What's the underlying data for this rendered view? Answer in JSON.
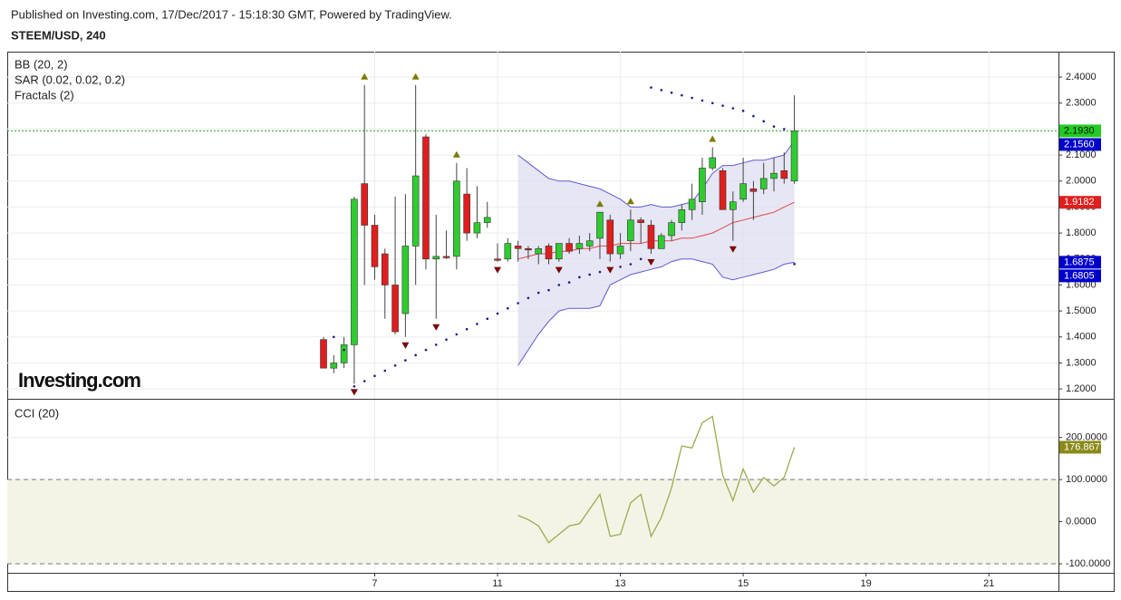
{
  "header": {
    "published": "Published on Investing.com, 17/Dec/2017 - 15:18:30 GMT, Powered by TradingView.",
    "symbol": "STEEM/USD, 240"
  },
  "chart_data": [
    {
      "type": "candlestick",
      "indicators": [
        "BB (20, 2)",
        "SAR (0.02, 0.02, 0.2)",
        "Fractals (2)"
      ],
      "watermark": "Investing.com",
      "x": [
        0,
        1,
        2,
        3,
        4,
        5,
        6,
        7,
        8,
        9,
        10,
        11,
        12,
        13,
        14,
        15,
        16,
        17,
        18,
        19,
        20,
        21,
        22,
        23,
        24,
        25,
        26,
        27,
        28,
        29,
        30,
        31,
        32,
        33,
        34,
        35,
        36,
        37,
        38,
        39,
        40,
        41,
        42,
        43,
        44,
        45,
        46
      ],
      "open": [
        1.39,
        1.28,
        1.3,
        1.37,
        1.99,
        1.83,
        1.72,
        1.6,
        1.49,
        1.75,
        2.17,
        1.7,
        1.71,
        1.71,
        1.95,
        1.8,
        1.84,
        1.7,
        1.7,
        1.75,
        1.74,
        1.72,
        1.75,
        1.7,
        1.76,
        1.74,
        1.75,
        1.78,
        1.85,
        1.72,
        1.77,
        1.85,
        1.83,
        1.74,
        1.79,
        1.84,
        1.89,
        1.92,
        2.05,
        2.04,
        1.89,
        1.93,
        1.97,
        1.97,
        2.01,
        2.04,
        2.0
      ],
      "close": [
        1.28,
        1.3,
        1.37,
        1.93,
        1.83,
        1.67,
        1.6,
        1.42,
        1.75,
        2.02,
        1.7,
        1.71,
        1.71,
        2.0,
        1.8,
        1.84,
        1.86,
        1.7,
        1.76,
        1.74,
        1.74,
        1.74,
        1.7,
        1.76,
        1.73,
        1.76,
        1.77,
        1.88,
        1.72,
        1.75,
        1.85,
        1.84,
        1.74,
        1.79,
        1.84,
        1.89,
        1.93,
        2.05,
        2.09,
        1.89,
        1.92,
        1.99,
        1.96,
        2.01,
        2.03,
        2.01,
        2.193
      ],
      "high": [
        1.4,
        1.33,
        1.4,
        1.94,
        2.37,
        1.87,
        1.74,
        1.94,
        1.95,
        2.37,
        2.18,
        1.87,
        1.81,
        2.07,
        2.05,
        1.98,
        1.92,
        1.76,
        1.78,
        1.77,
        1.75,
        1.75,
        1.76,
        1.76,
        1.78,
        1.79,
        1.8,
        1.88,
        1.87,
        1.8,
        1.89,
        1.86,
        1.85,
        1.8,
        1.85,
        1.91,
        1.99,
        2.09,
        2.13,
        2.05,
        1.96,
        2.09,
        2.0,
        2.07,
        2.09,
        2.11,
        2.33
      ],
      "low": [
        1.28,
        1.26,
        1.28,
        1.22,
        1.6,
        1.62,
        1.47,
        1.41,
        1.4,
        1.6,
        1.66,
        1.47,
        1.7,
        1.66,
        1.77,
        1.78,
        1.82,
        1.69,
        1.69,
        1.69,
        1.7,
        1.68,
        1.68,
        1.69,
        1.72,
        1.72,
        1.73,
        1.7,
        1.69,
        1.7,
        1.73,
        1.76,
        1.72,
        1.74,
        1.77,
        1.81,
        1.85,
        1.87,
        2.04,
        1.89,
        1.77,
        1.92,
        1.85,
        1.95,
        1.96,
        1.99,
        1.99
      ],
      "close_labels": [
        null,
        null,
        null,
        null,
        null,
        null,
        null,
        null,
        null,
        null,
        null,
        null,
        null,
        null,
        null,
        null,
        null,
        null,
        null,
        null,
        null,
        null,
        null,
        null,
        null,
        null,
        null,
        null,
        null,
        null,
        null,
        null,
        null,
        null,
        null,
        null,
        null,
        null,
        null,
        null,
        null,
        null,
        null,
        null,
        null,
        null,
        "2.1930"
      ],
      "up_color": "#2fcc2f",
      "down_color": "#e01e1e",
      "wick_color": "#444444",
      "label_color": "#22cc22",
      "price_line_color": "#22aa22",
      "xlim": [
        -30.9,
        71.8
      ],
      "xticks": [
        {
          "value": 5,
          "label": "7"
        },
        {
          "value": 17,
          "label": "11"
        },
        {
          "value": 29,
          "label": "13"
        },
        {
          "value": 41,
          "label": "15"
        },
        {
          "value": 53,
          "label": "19"
        },
        {
          "value": 65,
          "label": "21"
        }
      ],
      "ylim": [
        1.162,
        2.498
      ],
      "yticks": [
        {
          "value": 1.2,
          "label": "1.2000"
        },
        {
          "value": 1.3,
          "label": "1.3000"
        },
        {
          "value": 1.4,
          "label": "1.4000"
        },
        {
          "value": 1.5,
          "label": "1.5000"
        },
        {
          "value": 1.6,
          "label": "1.6000"
        },
        {
          "value": 1.7,
          "label": "1.7000"
        },
        {
          "value": 1.8,
          "label": "1.8000"
        },
        {
          "value": 1.9,
          "label": "1.9000"
        },
        {
          "value": 2.0,
          "label": "2.0000"
        },
        {
          "value": 2.1,
          "label": "2.1000"
        },
        {
          "value": 2.2,
          "label": "2.2000"
        },
        {
          "value": 2.3,
          "label": "2.3000"
        },
        {
          "value": 2.4,
          "label": "2.4000"
        }
      ],
      "grid": true,
      "bands": {
        "upper": [
          null,
          null,
          null,
          null,
          null,
          null,
          null,
          null,
          null,
          null,
          null,
          null,
          null,
          null,
          null,
          null,
          null,
          null,
          null,
          2.1,
          2.07,
          2.04,
          2.01,
          2.0,
          2.0,
          1.99,
          1.98,
          1.97,
          1.95,
          1.93,
          1.9,
          1.9,
          1.91,
          1.9,
          1.9,
          1.91,
          1.92,
          1.97,
          2.03,
          2.06,
          2.06,
          2.07,
          2.08,
          2.08,
          2.09,
          2.1,
          2.156
        ],
        "middle": [
          null,
          null,
          null,
          null,
          null,
          null,
          null,
          null,
          null,
          null,
          null,
          null,
          null,
          null,
          null,
          null,
          null,
          null,
          null,
          1.7,
          1.71,
          1.72,
          1.72,
          1.73,
          1.73,
          1.74,
          1.74,
          1.75,
          1.75,
          1.76,
          1.76,
          1.76,
          1.77,
          1.77,
          1.77,
          1.78,
          1.78,
          1.79,
          1.8,
          1.82,
          1.84,
          1.85,
          1.86,
          1.87,
          1.88,
          1.9,
          1.9182
        ],
        "lower": [
          null,
          null,
          null,
          null,
          null,
          null,
          null,
          null,
          null,
          null,
          null,
          null,
          null,
          null,
          null,
          null,
          null,
          null,
          null,
          1.29,
          1.35,
          1.41,
          1.46,
          1.5,
          1.51,
          1.51,
          1.51,
          1.52,
          1.6,
          1.62,
          1.64,
          1.65,
          1.66,
          1.67,
          1.69,
          1.7,
          1.7,
          1.69,
          1.68,
          1.63,
          1.62,
          1.63,
          1.64,
          1.65,
          1.66,
          1.68,
          1.6875
        ],
        "upper_labels": [
          null,
          null,
          null,
          null,
          null,
          null,
          null,
          null,
          null,
          null,
          null,
          null,
          null,
          null,
          null,
          null,
          null,
          null,
          null,
          null,
          null,
          null,
          null,
          null,
          null,
          null,
          null,
          null,
          null,
          null,
          null,
          null,
          null,
          null,
          null,
          null,
          null,
          null,
          null,
          null,
          null,
          null,
          null,
          null,
          null,
          null,
          "2.1560"
        ],
        "middle_labels": [
          null,
          null,
          null,
          null,
          null,
          null,
          null,
          null,
          null,
          null,
          null,
          null,
          null,
          null,
          null,
          null,
          null,
          null,
          null,
          null,
          null,
          null,
          null,
          null,
          null,
          null,
          null,
          null,
          null,
          null,
          null,
          null,
          null,
          null,
          null,
          null,
          null,
          null,
          null,
          null,
          null,
          null,
          null,
          null,
          null,
          null,
          "1.9182"
        ],
        "lower_labels": [
          null,
          null,
          null,
          null,
          null,
          null,
          null,
          null,
          null,
          null,
          null,
          null,
          null,
          null,
          null,
          null,
          null,
          null,
          null,
          null,
          null,
          null,
          null,
          null,
          null,
          null,
          null,
          null,
          null,
          null,
          null,
          null,
          null,
          null,
          null,
          null,
          null,
          null,
          null,
          null,
          null,
          null,
          null,
          null,
          null,
          null,
          "1.6875"
        ],
        "color": "#5c5cd0",
        "middle_color": "#e04848",
        "fill": "#dedef0",
        "label_color": "#0000cc",
        "middle_label_color": "#e01e1e"
      },
      "sar": {
        "values": [
          null,
          1.4,
          1.35,
          1.21,
          1.23,
          1.25,
          1.27,
          1.29,
          1.31,
          1.33,
          1.35,
          1.37,
          1.39,
          1.41,
          1.43,
          1.45,
          1.47,
          1.49,
          1.51,
          1.53,
          1.55,
          1.57,
          1.58,
          1.6,
          1.61,
          1.63,
          1.64,
          1.65,
          1.66,
          1.67,
          1.68,
          1.7,
          2.36,
          2.35,
          2.34,
          2.33,
          2.32,
          2.31,
          2.3,
          2.29,
          2.28,
          2.27,
          2.25,
          2.23,
          2.21,
          2.2,
          1.6805
        ],
        "value_labels": [
          null,
          null,
          null,
          null,
          null,
          null,
          null,
          null,
          null,
          null,
          null,
          null,
          null,
          null,
          null,
          null,
          null,
          null,
          null,
          null,
          null,
          null,
          null,
          null,
          null,
          null,
          null,
          null,
          null,
          null,
          null,
          null,
          null,
          null,
          null,
          null,
          null,
          null,
          null,
          null,
          null,
          null,
          null,
          null,
          null,
          null,
          "1.6805"
        ],
        "color": "#1a1a8c",
        "label_color": "#0000cc"
      },
      "fractals_up": {
        "x": [
          4,
          9,
          13,
          27,
          30,
          38
        ],
        "values": [
          2.37,
          2.37,
          2.07,
          1.88,
          1.89,
          2.13
        ],
        "color": "#7b7b00"
      },
      "fractals_down": {
        "x": [
          3,
          8,
          11,
          17,
          23,
          28,
          32,
          40
        ],
        "values": [
          1.22,
          1.4,
          1.47,
          1.69,
          1.69,
          1.69,
          1.72,
          1.77
        ],
        "color": "#7b0000"
      }
    },
    {
      "type": "line",
      "title": "CCI (20)",
      "x": [
        19,
        20,
        21,
        22,
        23,
        24,
        25,
        26,
        27,
        28,
        29,
        30,
        31,
        32,
        33,
        34,
        35,
        36,
        37,
        38,
        39,
        40,
        41,
        42,
        43,
        44,
        45,
        46
      ],
      "values": [
        15,
        5,
        -10,
        -50,
        -30,
        -10,
        -5,
        30,
        65,
        -35,
        -30,
        45,
        65,
        -35,
        10,
        80,
        180,
        175,
        235,
        250,
        110,
        50,
        125,
        70,
        105,
        85,
        105,
        176.8677
      ],
      "value_labels": [
        null,
        null,
        null,
        null,
        null,
        null,
        null,
        null,
        null,
        null,
        null,
        null,
        null,
        null,
        null,
        null,
        null,
        null,
        null,
        null,
        null,
        null,
        null,
        null,
        null,
        null,
        null,
        "176.8677"
      ],
      "color": "#9aab4e",
      "label_color": "#8a8a1a",
      "ylim": [
        -121.5,
        292
      ],
      "yticks": [
        {
          "value": -100,
          "label": "-100.0000"
        },
        {
          "value": 0,
          "label": "0.0000"
        },
        {
          "value": 100,
          "label": "100.0000"
        },
        {
          "value": 200,
          "label": "200.0000"
        }
      ],
      "band": [
        -100,
        100
      ],
      "band_fill": "#f4f4e6"
    }
  ]
}
